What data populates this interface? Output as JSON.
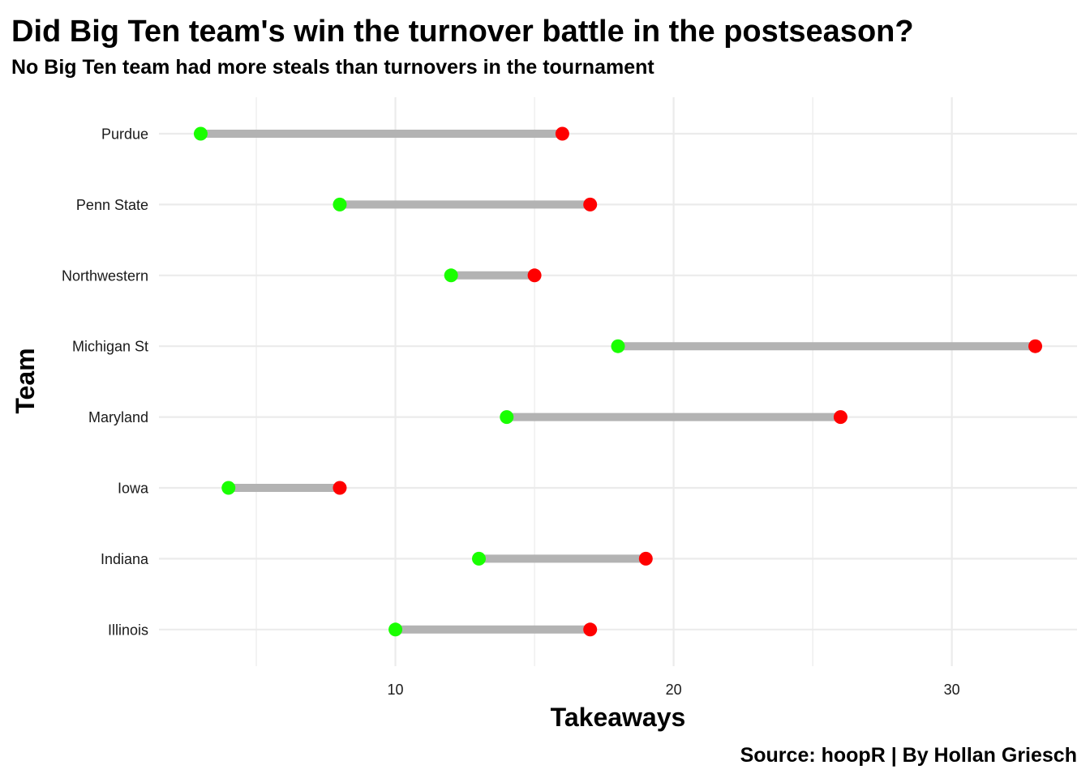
{
  "chart_data": {
    "type": "dumbbell",
    "title": "Did Big Ten team's win the turnover battle in the postseason?",
    "subtitle": "No Big Ten team had more steals than turnovers in the tournament",
    "caption": "Source: hoopR | By Hollan Griesch",
    "xlabel": "Takeaways",
    "ylabel": "Team",
    "xlim": [
      1.5,
      34.5
    ],
    "x_ticks": [
      10,
      20,
      30
    ],
    "x_minor_ticks": [
      5,
      15,
      25
    ],
    "grid": true,
    "colors": {
      "steals": "#19ff00",
      "turnovers": "#ff0000",
      "segment": "#b3b3b3",
      "grid": "#ebebeb"
    },
    "categories": [
      "Purdue",
      "Penn State",
      "Northwestern",
      "Michigan St",
      "Maryland",
      "Iowa",
      "Indiana",
      "Illinois"
    ],
    "series": [
      {
        "values": [
          3,
          8,
          12,
          18,
          14,
          4,
          13,
          10
        ]
      },
      {
        "values": [
          16,
          17,
          15,
          33,
          26,
          8,
          19,
          17
        ]
      }
    ]
  }
}
